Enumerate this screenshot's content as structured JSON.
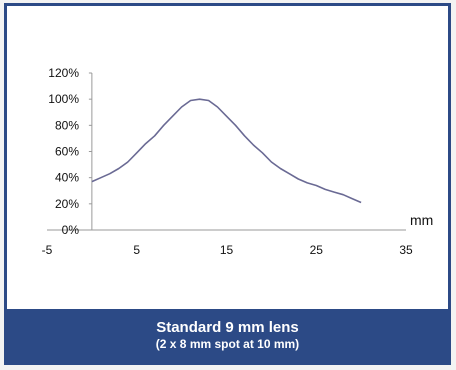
{
  "caption": {
    "title": "Standard 9 mm lens",
    "subtitle": "(2 x 8 mm spot at 10 mm)"
  },
  "colors": {
    "frame": "#2c4a86",
    "line": "#6a6a94",
    "axis": "#9a9a9a"
  },
  "chart_data": {
    "type": "line",
    "title": "",
    "xlabel": "",
    "ylabel": "",
    "x_unit": "mm",
    "xlim": [
      -5,
      35
    ],
    "ylim": [
      0,
      120
    ],
    "x_ticks": [
      "-5",
      "5",
      "15",
      "25",
      "35"
    ],
    "y_ticks": [
      "0%",
      "20%",
      "40%",
      "60%",
      "80%",
      "100%",
      "120%"
    ],
    "grid": false,
    "series": [
      {
        "x": [
          0,
          1,
          2,
          3,
          4,
          5,
          6,
          7,
          8,
          9,
          10,
          11,
          12,
          13,
          14,
          15,
          16,
          17,
          18,
          19,
          20,
          21,
          22,
          23,
          24,
          25,
          26,
          27,
          28,
          29,
          30
        ],
        "y": [
          37,
          40,
          43,
          47,
          52,
          59,
          66,
          72,
          80,
          87,
          94,
          99,
          100,
          99,
          94,
          87,
          80,
          72,
          65,
          59,
          52,
          47,
          43,
          39,
          36,
          34,
          31,
          29,
          27,
          24,
          21
        ]
      }
    ]
  }
}
